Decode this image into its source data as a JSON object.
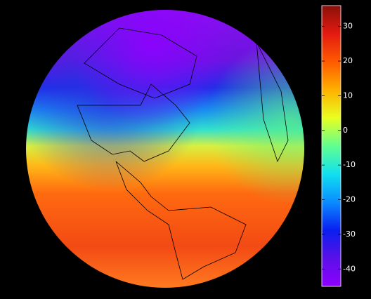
{
  "colorbar": {
    "lim": [
      -45,
      36
    ],
    "ticks": [
      30,
      20,
      10,
      0,
      -10,
      -20,
      -30,
      -40
    ],
    "colormap": [
      "#8f00ff",
      "#5a10e8",
      "#0a1ff0",
      "#0a8cff",
      "#10e0f0",
      "#60ff90",
      "#e8ff20",
      "#ffb000",
      "#ff5a00",
      "#e41a10",
      "#8a1008"
    ]
  }
}
